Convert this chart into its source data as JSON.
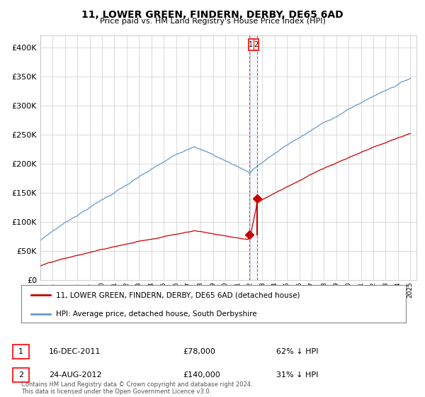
{
  "title": "11, LOWER GREEN, FINDERN, DERBY, DE65 6AD",
  "subtitle": "Price paid vs. HM Land Registry's House Price Index (HPI)",
  "red_legend": "11, LOWER GREEN, FINDERN, DERBY, DE65 6AD (detached house)",
  "blue_legend": "HPI: Average price, detached house, South Derbyshire",
  "transaction1_date": "16-DEC-2011",
  "transaction1_price": 78000,
  "transaction1_label": "62% ↓ HPI",
  "transaction2_date": "24-AUG-2012",
  "transaction2_price": 140000,
  "transaction2_label": "31% ↓ HPI",
  "footer": "Contains HM Land Registry data © Crown copyright and database right 2024.\nThis data is licensed under the Open Government Licence v3.0.",
  "ylim": [
    0,
    420000
  ],
  "yticks": [
    0,
    50000,
    100000,
    150000,
    200000,
    250000,
    300000,
    350000,
    400000
  ],
  "red_color": "#cc0000",
  "blue_color": "#6699cc",
  "bg_color": "#ffffff",
  "grid_color": "#cccccc",
  "t1_year": 2011.958,
  "t2_year": 2012.583,
  "t1_price": 78000,
  "t2_price": 140000,
  "xlim_start": 1995,
  "xlim_end": 2025.5
}
